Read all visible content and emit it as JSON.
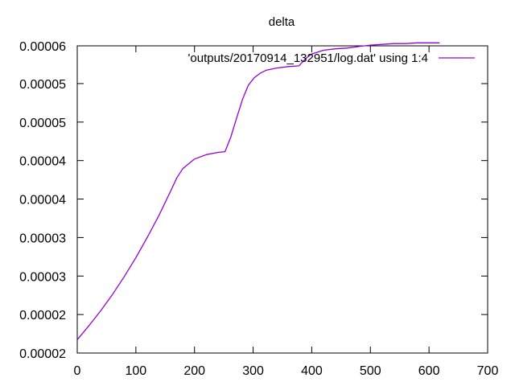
{
  "chart_data": {
    "type": "line",
    "title": "delta",
    "xlabel": "",
    "ylabel": "",
    "xlim": [
      0,
      700
    ],
    "ylim": [
      1.7e-05,
      5.85e-05
    ],
    "grid": false,
    "legend_position": "top-right",
    "x_ticks": [
      0,
      100,
      200,
      300,
      400,
      500,
      600,
      700
    ],
    "y_ticks": [
      {
        "value": 1.7e-05,
        "label": "0.00002"
      },
      {
        "value": 2.22e-05,
        "label": "0.00002"
      },
      {
        "value": 2.74e-05,
        "label": "0.00003"
      },
      {
        "value": 3.26e-05,
        "label": "0.00003"
      },
      {
        "value": 3.78e-05,
        "label": "0.00004"
      },
      {
        "value": 4.3e-05,
        "label": "0.00004"
      },
      {
        "value": 4.82e-05,
        "label": "0.00005"
      },
      {
        "value": 5.34e-05,
        "label": "0.00005"
      },
      {
        "value": 5.85e-05,
        "label": "0.00006"
      },
      {
        "value": 6.37e-05,
        "label": "0.00006"
      }
    ],
    "series": [
      {
        "name": "'outputs/20170914_132951/log.dat' using 1:4",
        "color": "#9400d3",
        "x": [
          0,
          20,
          40,
          60,
          80,
          100,
          120,
          140,
          160,
          170,
          180,
          200,
          220,
          240,
          252,
          262,
          272,
          282,
          292,
          302,
          312,
          322,
          340,
          360,
          378,
          390,
          400,
          420,
          440,
          460,
          480,
          500,
          520,
          540,
          560,
          580,
          600,
          618
        ],
        "y": [
          1.88e-05,
          2.07e-05,
          2.27e-05,
          2.49e-05,
          2.73e-05,
          2.99e-05,
          3.27e-05,
          3.57e-05,
          3.9e-05,
          4.07e-05,
          4.19e-05,
          4.32e-05,
          4.38e-05,
          4.41e-05,
          4.42e-05,
          4.62e-05,
          4.88e-05,
          5.13e-05,
          5.32e-05,
          5.42e-05,
          5.48e-05,
          5.52e-05,
          5.55e-05,
          5.57e-05,
          5.58e-05,
          5.68e-05,
          5.74e-05,
          5.79e-05,
          5.81e-05,
          5.82e-05,
          5.84e-05,
          5.86e-05,
          5.87e-05,
          5.88e-05,
          5.88e-05,
          5.89e-05,
          5.89e-05,
          5.89e-05
        ]
      }
    ]
  }
}
